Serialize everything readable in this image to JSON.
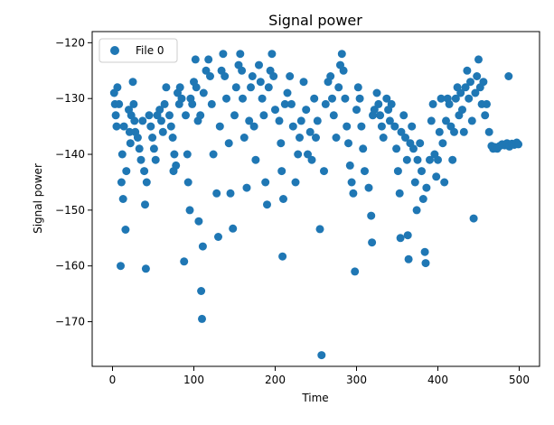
{
  "chart_data": {
    "type": "scatter",
    "title": "Signal power",
    "xlabel": "Time",
    "ylabel": "Signal power",
    "xlim": [
      -25,
      525
    ],
    "ylim": [
      -178,
      -118
    ],
    "xticks": [
      0,
      100,
      200,
      300,
      400,
      500
    ],
    "yticks": [
      -170,
      -160,
      -150,
      -140,
      -130,
      -120
    ],
    "xtick_labels": [
      "0",
      "100",
      "200",
      "300",
      "400",
      "500"
    ],
    "ytick_labels": [
      "−170",
      "−160",
      "−150",
      "−140",
      "−130",
      "−120"
    ],
    "legend": {
      "placement": "top-left",
      "entries": [
        "File 0"
      ]
    },
    "grid": false,
    "series": [
      {
        "name": "File 0",
        "color": "#1f77b4",
        "points": [
          [
            2,
            -129
          ],
          [
            3,
            -131
          ],
          [
            4,
            -133
          ],
          [
            5,
            -135
          ],
          [
            6,
            -128
          ],
          [
            8,
            -131
          ],
          [
            10,
            -160
          ],
          [
            11,
            -145
          ],
          [
            12,
            -140
          ],
          [
            13,
            -148
          ],
          [
            14,
            -135
          ],
          [
            16,
            -153.5
          ],
          [
            17,
            -143
          ],
          [
            20,
            -132
          ],
          [
            21,
            -136
          ],
          [
            22,
            -138
          ],
          [
            23,
            -133
          ],
          [
            25,
            -127
          ],
          [
            26,
            -131
          ],
          [
            27,
            -134
          ],
          [
            28,
            -136
          ],
          [
            31,
            -137
          ],
          [
            33,
            -139
          ],
          [
            35,
            -141
          ],
          [
            37,
            -134
          ],
          [
            39,
            -143
          ],
          [
            40,
            -149
          ],
          [
            41,
            -160.5
          ],
          [
            42,
            -145
          ],
          [
            45,
            -133
          ],
          [
            47,
            -135
          ],
          [
            49,
            -137
          ],
          [
            51,
            -139
          ],
          [
            53,
            -141
          ],
          [
            55,
            -133
          ],
          [
            58,
            -132
          ],
          [
            60,
            -134
          ],
          [
            62,
            -136
          ],
          [
            64,
            -131
          ],
          [
            66,
            -128
          ],
          [
            70,
            -133
          ],
          [
            72,
            -135
          ],
          [
            74,
            -137
          ],
          [
            75,
            -143
          ],
          [
            76,
            -140
          ],
          [
            78,
            -142
          ],
          [
            80,
            -129
          ],
          [
            82,
            -131
          ],
          [
            83,
            -128
          ],
          [
            85,
            -130
          ],
          [
            88,
            -159.2
          ],
          [
            90,
            -133
          ],
          [
            92,
            -140
          ],
          [
            93,
            -145
          ],
          [
            95,
            -150
          ],
          [
            96,
            -130
          ],
          [
            98,
            -131
          ],
          [
            100,
            -127
          ],
          [
            102,
            -123
          ],
          [
            103,
            -128
          ],
          [
            105,
            -134
          ],
          [
            106,
            -152
          ],
          [
            108,
            -133
          ],
          [
            109,
            -164.5
          ],
          [
            110,
            -169.5
          ],
          [
            111,
            -156.5
          ],
          [
            112,
            -129
          ],
          [
            115,
            -125
          ],
          [
            118,
            -123
          ],
          [
            120,
            -126
          ],
          [
            122,
            -131
          ],
          [
            124,
            -140
          ],
          [
            128,
            -147
          ],
          [
            130,
            -154.8
          ],
          [
            132,
            -135
          ],
          [
            134,
            -125
          ],
          [
            136,
            -122
          ],
          [
            138,
            -126
          ],
          [
            140,
            -130
          ],
          [
            143,
            -138
          ],
          [
            145,
            -147
          ],
          [
            148,
            -153.3
          ],
          [
            150,
            -133
          ],
          [
            152,
            -128
          ],
          [
            155,
            -124
          ],
          [
            157,
            -122
          ],
          [
            159,
            -125
          ],
          [
            160,
            -130
          ],
          [
            162,
            -137
          ],
          [
            165,
            -146
          ],
          [
            168,
            -134
          ],
          [
            170,
            -128
          ],
          [
            172,
            -126
          ],
          [
            174,
            -135
          ],
          [
            176,
            -141
          ],
          [
            180,
            -124
          ],
          [
            182,
            -127
          ],
          [
            184,
            -130
          ],
          [
            186,
            -133
          ],
          [
            188,
            -145
          ],
          [
            190,
            -149
          ],
          [
            192,
            -128
          ],
          [
            194,
            -125
          ],
          [
            196,
            -122
          ],
          [
            198,
            -126
          ],
          [
            200,
            -132
          ],
          [
            205,
            -134
          ],
          [
            207,
            -138
          ],
          [
            208,
            -143
          ],
          [
            209,
            -158.3
          ],
          [
            210,
            -148
          ],
          [
            212,
            -131
          ],
          [
            215,
            -129
          ],
          [
            218,
            -126
          ],
          [
            220,
            -131
          ],
          [
            222,
            -135
          ],
          [
            225,
            -145
          ],
          [
            228,
            -140
          ],
          [
            230,
            -137
          ],
          [
            232,
            -134
          ],
          [
            235,
            -127
          ],
          [
            238,
            -132
          ],
          [
            240,
            -140
          ],
          [
            243,
            -136
          ],
          [
            245,
            -141
          ],
          [
            248,
            -130
          ],
          [
            250,
            -137
          ],
          [
            252,
            -134
          ],
          [
            255,
            -153.4
          ],
          [
            257,
            -176
          ],
          [
            260,
            -143
          ],
          [
            262,
            -131
          ],
          [
            265,
            -127
          ],
          [
            268,
            -126
          ],
          [
            270,
            -130
          ],
          [
            272,
            -133
          ],
          [
            275,
            -137
          ],
          [
            278,
            -128
          ],
          [
            280,
            -124
          ],
          [
            282,
            -122
          ],
          [
            284,
            -125
          ],
          [
            286,
            -130
          ],
          [
            288,
            -135
          ],
          [
            290,
            -138
          ],
          [
            292,
            -142
          ],
          [
            294,
            -145
          ],
          [
            296,
            -147
          ],
          [
            298,
            -161
          ],
          [
            300,
            -132
          ],
          [
            302,
            -128
          ],
          [
            304,
            -130
          ],
          [
            306,
            -135
          ],
          [
            308,
            -139
          ],
          [
            310,
            -143
          ],
          [
            315,
            -146
          ],
          [
            318,
            -151
          ],
          [
            319,
            -155.8
          ],
          [
            320,
            -133
          ],
          [
            322,
            -132
          ],
          [
            325,
            -129
          ],
          [
            327,
            -131
          ],
          [
            329,
            -133
          ],
          [
            331,
            -135
          ],
          [
            333,
            -137
          ],
          [
            337,
            -130
          ],
          [
            339,
            -132
          ],
          [
            341,
            -134
          ],
          [
            343,
            -131
          ],
          [
            347,
            -135
          ],
          [
            349,
            -139
          ],
          [
            351,
            -143
          ],
          [
            353,
            -147
          ],
          [
            354,
            -155
          ],
          [
            355,
            -136
          ],
          [
            358,
            -133
          ],
          [
            360,
            -137
          ],
          [
            362,
            -141
          ],
          [
            363,
            -154.5
          ],
          [
            364,
            -158.8
          ],
          [
            366,
            -138
          ],
          [
            368,
            -135
          ],
          [
            370,
            -139
          ],
          [
            372,
            -145
          ],
          [
            374,
            -150
          ],
          [
            375,
            -141
          ],
          [
            378,
            -138
          ],
          [
            380,
            -143
          ],
          [
            382,
            -148
          ],
          [
            384,
            -157.5
          ],
          [
            385,
            -159.5
          ],
          [
            386,
            -146
          ],
          [
            390,
            -141
          ],
          [
            392,
            -134
          ],
          [
            394,
            -131
          ],
          [
            396,
            -140
          ],
          [
            398,
            -144
          ],
          [
            400,
            -141
          ],
          [
            402,
            -136
          ],
          [
            404,
            -130
          ],
          [
            406,
            -138
          ],
          [
            408,
            -145
          ],
          [
            410,
            -134
          ],
          [
            412,
            -130
          ],
          [
            414,
            -131
          ],
          [
            416,
            -135
          ],
          [
            418,
            -141
          ],
          [
            420,
            -136
          ],
          [
            422,
            -130
          ],
          [
            424,
            -128
          ],
          [
            426,
            -133
          ],
          [
            428,
            -129
          ],
          [
            430,
            -132
          ],
          [
            432,
            -136
          ],
          [
            434,
            -128
          ],
          [
            436,
            -125
          ],
          [
            438,
            -130
          ],
          [
            440,
            -127
          ],
          [
            442,
            -134
          ],
          [
            444,
            -151.5
          ],
          [
            446,
            -129
          ],
          [
            448,
            -126
          ],
          [
            450,
            -123
          ],
          [
            452,
            -128
          ],
          [
            454,
            -131
          ],
          [
            456,
            -127
          ],
          [
            458,
            -133
          ],
          [
            460,
            -131
          ],
          [
            463,
            -136
          ],
          [
            466,
            -138.5
          ],
          [
            468,
            -139
          ],
          [
            470,
            -138.7
          ],
          [
            473,
            -139
          ],
          [
            476,
            -138.5
          ],
          [
            479,
            -138.2
          ],
          [
            482,
            -138.4
          ],
          [
            485,
            -138
          ],
          [
            487,
            -126
          ],
          [
            488,
            -138.6
          ],
          [
            491,
            -138.1
          ],
          [
            494,
            -138.3
          ],
          [
            497,
            -137.9
          ],
          [
            499,
            -138.2
          ]
        ]
      }
    ]
  }
}
